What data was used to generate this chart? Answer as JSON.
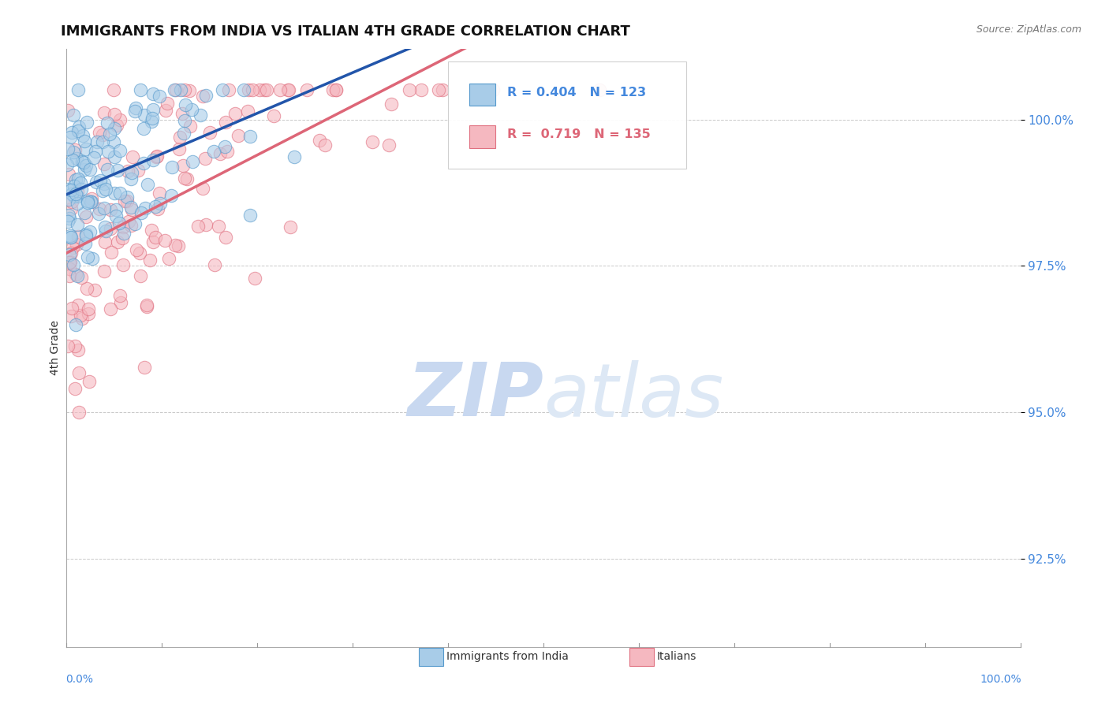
{
  "title": "IMMIGRANTS FROM INDIA VS ITALIAN 4TH GRADE CORRELATION CHART",
  "source": "Source: ZipAtlas.com",
  "ylabel": "4th Grade",
  "ytick_labels": [
    "92.5%",
    "95.0%",
    "97.5%",
    "100.0%"
  ],
  "ytick_values": [
    92.5,
    95.0,
    97.5,
    100.0
  ],
  "xlim": [
    0.0,
    100.0
  ],
  "ylim": [
    91.0,
    101.2
  ],
  "watermark_zip": "ZIP",
  "watermark_atlas": "atlas",
  "watermark_color": "#c8d8f0",
  "background_color": "#ffffff",
  "grid_color": "#bbbbbb",
  "title_fontsize": 13,
  "axis_label_color": "#4488dd",
  "india_color": "#a8cce8",
  "india_edge_color": "#5599cc",
  "italian_color": "#f5b8c0",
  "italian_edge_color": "#e07080",
  "india_line_color": "#2255aa",
  "italian_line_color": "#dd6677",
  "N_india": 123,
  "N_italian": 135,
  "R_india": 0.404,
  "R_italian": 0.719,
  "legend_R_india_color": "#4488dd",
  "legend_R_italian_color": "#dd6677",
  "seed": 42
}
